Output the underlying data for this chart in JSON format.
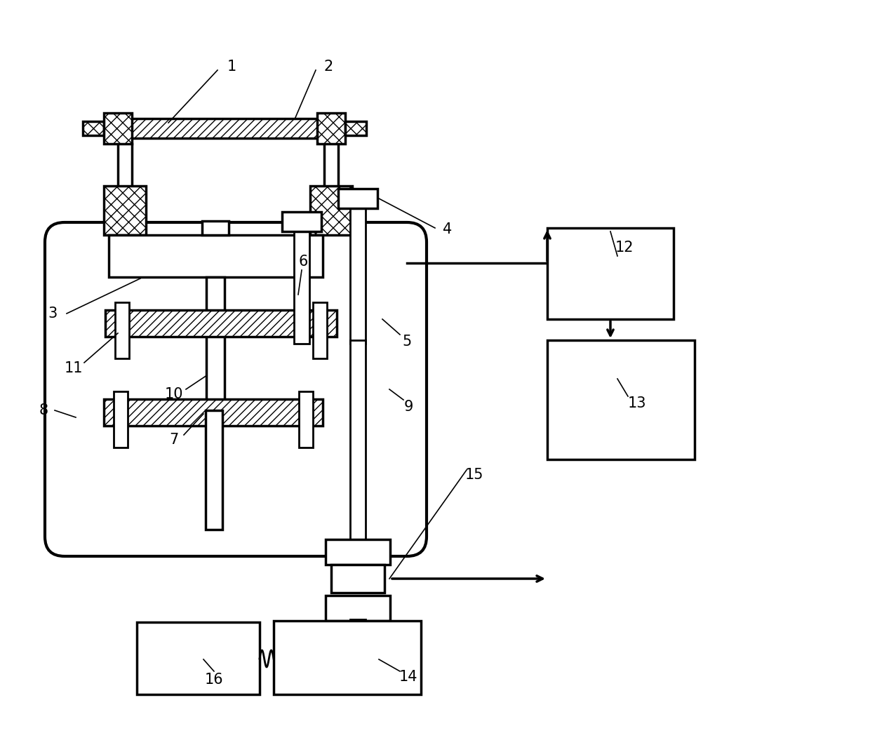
{
  "bg_color": "#ffffff",
  "line_color": "#000000",
  "lw": 2.0,
  "lw_thick": 2.5,
  "label_fontsize": 15
}
